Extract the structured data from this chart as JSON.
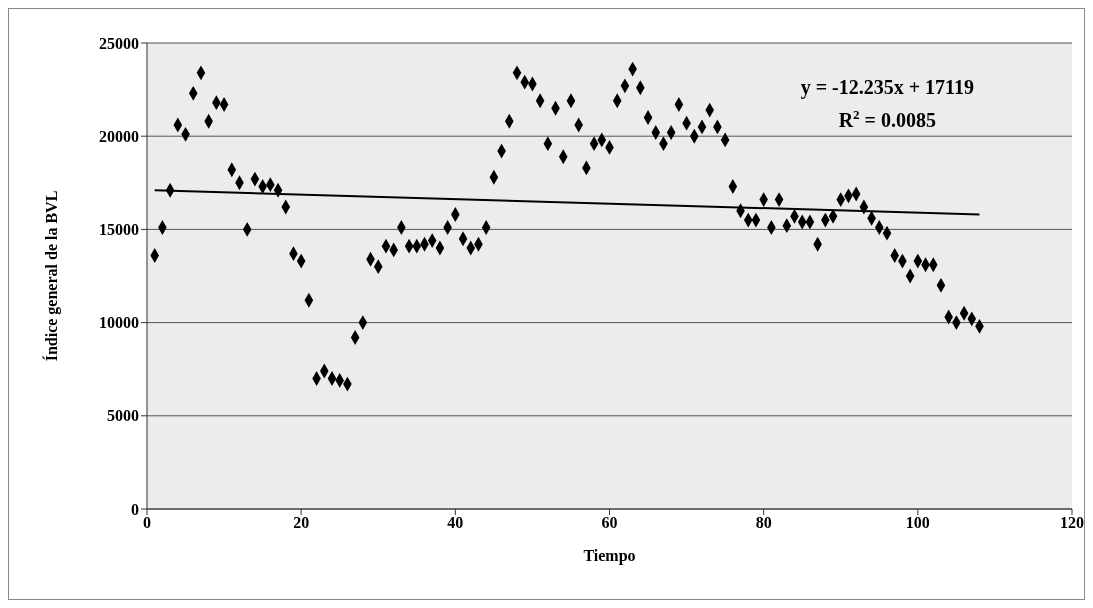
{
  "chart_data": {
    "type": "scatter",
    "xlabel": "Tiempo",
    "ylabel": "Índice general de la BVL",
    "xlim": [
      0,
      120
    ],
    "xticks": [
      0,
      20,
      40,
      60,
      80,
      100,
      120
    ],
    "ylim": [
      0,
      25000
    ],
    "yticks": [
      0,
      5000,
      10000,
      15000,
      20000,
      25000
    ],
    "grid": "y",
    "marker": "diamond",
    "annotations": [
      "y = -12.235x + 17119",
      "R$^{2}$ = 0.0085"
    ],
    "series": [
      {
        "color": "#000000",
        "x": [
          1,
          2,
          3,
          4,
          5,
          6,
          7,
          8,
          9,
          10,
          11,
          12,
          13,
          14,
          15,
          16,
          17,
          18,
          19,
          20,
          21,
          22,
          23,
          24,
          25,
          26,
          27,
          28,
          29,
          30,
          31,
          32,
          33,
          34,
          35,
          36,
          37,
          38,
          39,
          40,
          41,
          42,
          43,
          44,
          45,
          46,
          47,
          48,
          49,
          50,
          51,
          52,
          53,
          54,
          55,
          56,
          57,
          58,
          59,
          60,
          61,
          62,
          63,
          64,
          65,
          66,
          67,
          68,
          69,
          70,
          71,
          72,
          73,
          74,
          75,
          76,
          77,
          78,
          79,
          80,
          81,
          82,
          83,
          84,
          85,
          86,
          87,
          88,
          89,
          90,
          91,
          92,
          93,
          94,
          95,
          96,
          97,
          98,
          99,
          100,
          101,
          102,
          103,
          104,
          105,
          106,
          107,
          108
        ],
        "values": [
          13600,
          15100,
          17100,
          20600,
          20100,
          22300,
          23400,
          20800,
          21800,
          21700,
          18200,
          17500,
          15000,
          17700,
          17300,
          17400,
          17100,
          16200,
          13700,
          13300,
          11200,
          7000,
          7400,
          7000,
          6900,
          6700,
          9200,
          10000,
          13400,
          13000,
          14100,
          13900,
          15100,
          14100,
          14100,
          14200,
          14400,
          14000,
          15100,
          15800,
          14500,
          14000,
          14200,
          15100,
          17800,
          19200,
          20800,
          23400,
          22900,
          22800,
          21900,
          19600,
          21500,
          18900,
          21900,
          20600,
          18300,
          19600,
          19800,
          19400,
          21900,
          22700,
          23600,
          22600,
          21000,
          20200,
          19600,
          20200,
          21700,
          20700,
          20000,
          20500,
          21400,
          20500,
          19800,
          17300,
          16000,
          15500,
          15500,
          16600,
          15100,
          16600,
          15200,
          15700,
          15400,
          15400,
          14200,
          15500,
          15700,
          16600,
          16800,
          16900,
          16200,
          15600,
          15100,
          14800,
          13600,
          13300,
          12500,
          13300,
          13100,
          13100,
          12000,
          10300,
          10000,
          10500,
          10200,
          9800
        ]
      },
      {
        "type": "line",
        "color": "#000000",
        "marker": "none",
        "line_style": "solid",
        "x": [
          1,
          108
        ],
        "values": [
          17100,
          15800
        ]
      }
    ]
  }
}
